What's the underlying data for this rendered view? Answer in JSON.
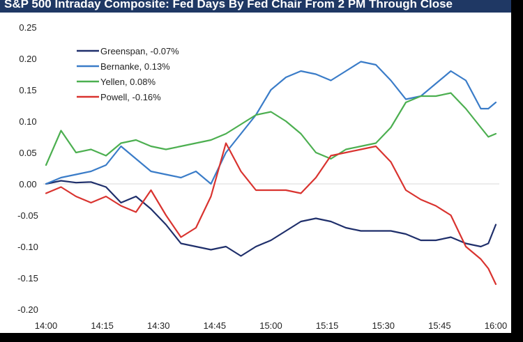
{
  "chart_data": {
    "type": "line",
    "title": "S&P 500 Intraday Composite: Fed Days By Fed Chair From 2 PM Through Close",
    "xlabel": "",
    "ylabel": "",
    "x_ticks": [
      "14:00",
      "14:15",
      "14:30",
      "14:45",
      "15:00",
      "15:15",
      "15:30",
      "15:45",
      "16:00"
    ],
    "y_ticks": [
      "0.25",
      "0.20",
      "0.15",
      "0.10",
      "0.05",
      "0.00",
      "-0.05",
      "-0.10",
      "-0.15",
      "-0.20"
    ],
    "ylim": [
      -0.2,
      0.25
    ],
    "xlim_minutes": [
      0,
      120
    ],
    "grid": "horizontal zero line only",
    "legend_position": "top-left",
    "series": [
      {
        "name": "Greenspan, -0.07%",
        "color": "#1f2f6b",
        "x": [
          0,
          4,
          8,
          12,
          16,
          20,
          24,
          28,
          32,
          36,
          40,
          44,
          48,
          52,
          56,
          60,
          64,
          68,
          72,
          76,
          80,
          84,
          88,
          92,
          96,
          100,
          104,
          108,
          112,
          116,
          118,
          120
        ],
        "values": [
          0.0,
          0.005,
          0.002,
          0.003,
          -0.005,
          -0.03,
          -0.02,
          -0.04,
          -0.065,
          -0.095,
          -0.1,
          -0.105,
          -0.1,
          -0.115,
          -0.1,
          -0.09,
          -0.075,
          -0.06,
          -0.055,
          -0.06,
          -0.07,
          -0.075,
          -0.075,
          -0.075,
          -0.08,
          -0.09,
          -0.09,
          -0.085,
          -0.095,
          -0.1,
          -0.095,
          -0.065
        ]
      },
      {
        "name": "Bernanke, 0.13%",
        "color": "#3a7cc8",
        "x": [
          0,
          4,
          8,
          12,
          16,
          20,
          24,
          28,
          32,
          36,
          40,
          44,
          48,
          52,
          56,
          60,
          64,
          68,
          72,
          76,
          80,
          84,
          88,
          92,
          96,
          100,
          104,
          108,
          112,
          116,
          118,
          120
        ],
        "values": [
          0.0,
          0.01,
          0.015,
          0.02,
          0.03,
          0.06,
          0.04,
          0.02,
          0.015,
          0.01,
          0.02,
          0.0,
          0.05,
          0.08,
          0.11,
          0.15,
          0.17,
          0.18,
          0.175,
          0.165,
          0.18,
          0.195,
          0.19,
          0.165,
          0.135,
          0.14,
          0.16,
          0.18,
          0.165,
          0.12,
          0.12,
          0.13
        ]
      },
      {
        "name": "Yellen, 0.08%",
        "color": "#4caf50",
        "x": [
          0,
          4,
          8,
          12,
          16,
          20,
          24,
          28,
          32,
          36,
          40,
          44,
          48,
          52,
          56,
          60,
          64,
          68,
          72,
          76,
          80,
          84,
          88,
          92,
          96,
          100,
          104,
          108,
          112,
          116,
          118,
          120
        ],
        "values": [
          0.03,
          0.085,
          0.05,
          0.055,
          0.045,
          0.065,
          0.07,
          0.06,
          0.055,
          0.06,
          0.065,
          0.07,
          0.08,
          0.095,
          0.11,
          0.115,
          0.1,
          0.08,
          0.05,
          0.04,
          0.055,
          0.06,
          0.065,
          0.09,
          0.13,
          0.14,
          0.14,
          0.145,
          0.12,
          0.09,
          0.075,
          0.08
        ]
      },
      {
        "name": "Powell, -0.16%",
        "color": "#d9332f",
        "x": [
          0,
          4,
          8,
          12,
          16,
          20,
          24,
          28,
          32,
          36,
          40,
          44,
          48,
          52,
          56,
          60,
          64,
          68,
          72,
          76,
          80,
          84,
          88,
          92,
          96,
          100,
          104,
          108,
          112,
          116,
          118,
          120
        ],
        "values": [
          -0.015,
          -0.005,
          -0.02,
          -0.03,
          -0.02,
          -0.035,
          -0.045,
          -0.01,
          -0.05,
          -0.085,
          -0.07,
          -0.02,
          0.065,
          0.02,
          -0.01,
          -0.01,
          -0.01,
          -0.015,
          0.01,
          0.045,
          0.05,
          0.055,
          0.06,
          0.035,
          -0.01,
          -0.025,
          -0.035,
          -0.05,
          -0.1,
          -0.12,
          -0.135,
          -0.16
        ]
      }
    ]
  }
}
